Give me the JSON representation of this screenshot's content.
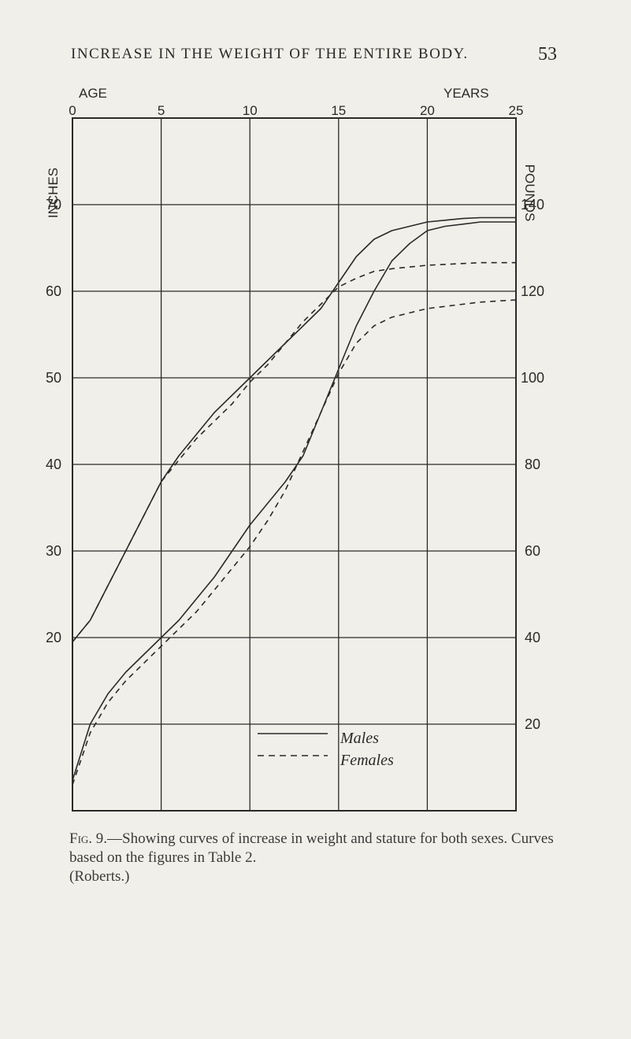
{
  "page": {
    "running_head": "INCREASE IN THE WEIGHT OF THE ENTIRE BODY.",
    "page_number": "53"
  },
  "caption": {
    "lead": "Fig. 9.",
    "body": "—Showing curves of increase in weight and stature for both sexes. Curves based on the figures in Table 2.",
    "credit": "(Roberts.)"
  },
  "chart_data": {
    "type": "line",
    "title": "",
    "x_axis": {
      "label_left": "AGE",
      "label_right": "YEARS",
      "ticks": [
        "0",
        "5",
        "10",
        "15",
        "20",
        "25"
      ],
      "range": [
        0,
        25
      ]
    },
    "y_axis_left": {
      "label": "INCHES",
      "ticks": [
        "70",
        "60",
        "50",
        "40",
        "30",
        "20"
      ],
      "range": [
        0,
        80
      ]
    },
    "y_axis_right": {
      "label": "POUNDS",
      "ticks": [
        "140",
        "120",
        "100",
        "80",
        "60",
        "40",
        "20"
      ],
      "range": [
        0,
        160
      ]
    },
    "grid": true,
    "legend": {
      "position": "bottom-center",
      "entries": [
        {
          "style": "solid",
          "label": "Males"
        },
        {
          "style": "dashed",
          "label": "Females"
        }
      ]
    },
    "series": [
      {
        "legend_index": 0,
        "kind": "weight",
        "axis": "right",
        "x": [
          0,
          1,
          2,
          3,
          4,
          5,
          6,
          7,
          8,
          9,
          10,
          11,
          12,
          13,
          14,
          15,
          16,
          17,
          18,
          19,
          20,
          21,
          22,
          23,
          25
        ],
        "y": [
          7,
          20,
          27,
          32,
          36,
          40,
          44,
          49,
          54,
          60,
          66,
          71,
          76,
          82,
          92,
          102,
          112,
          120,
          127,
          131,
          134,
          135,
          135.5,
          136,
          136
        ]
      },
      {
        "legend_index": 1,
        "kind": "weight",
        "axis": "right",
        "x": [
          0,
          1,
          2,
          3,
          4,
          5,
          6,
          7,
          8,
          9,
          10,
          11,
          12,
          13,
          14,
          15,
          16,
          17,
          18,
          19,
          20,
          21,
          22,
          23,
          25
        ],
        "y": [
          6,
          18,
          25,
          30,
          34,
          38,
          42,
          46,
          51,
          56,
          61,
          67,
          74,
          83,
          92,
          101,
          108,
          112,
          114,
          115,
          116,
          116.5,
          117,
          117.5,
          118
        ]
      },
      {
        "legend_index": 0,
        "kind": "stature",
        "axis": "left",
        "x": [
          0,
          1,
          2,
          3,
          4,
          5,
          6,
          7,
          8,
          9,
          10,
          11,
          12,
          13,
          14,
          15,
          16,
          17,
          18,
          19,
          20,
          21,
          22,
          23,
          25
        ],
        "y": [
          19.5,
          22,
          26,
          30,
          34,
          38,
          41,
          43.5,
          46,
          48,
          50,
          52,
          54,
          56,
          58,
          61,
          64,
          66,
          67,
          67.5,
          68,
          68.2,
          68.4,
          68.5,
          68.5
        ]
      },
      {
        "legend_index": 1,
        "kind": "stature",
        "axis": "left",
        "x": [
          0,
          1,
          2,
          3,
          4,
          5,
          6,
          7,
          8,
          9,
          10,
          11,
          12,
          13,
          14,
          15,
          16,
          17,
          18,
          19,
          20,
          21,
          22,
          23,
          25
        ],
        "y": [
          19.5,
          22,
          26,
          30,
          34,
          38,
          40.5,
          43,
          45,
          47,
          49.5,
          51.5,
          54,
          56.5,
          58.5,
          60.5,
          61.5,
          62.3,
          62.6,
          62.8,
          63,
          63.1,
          63.2,
          63.3,
          63.3
        ]
      }
    ]
  }
}
